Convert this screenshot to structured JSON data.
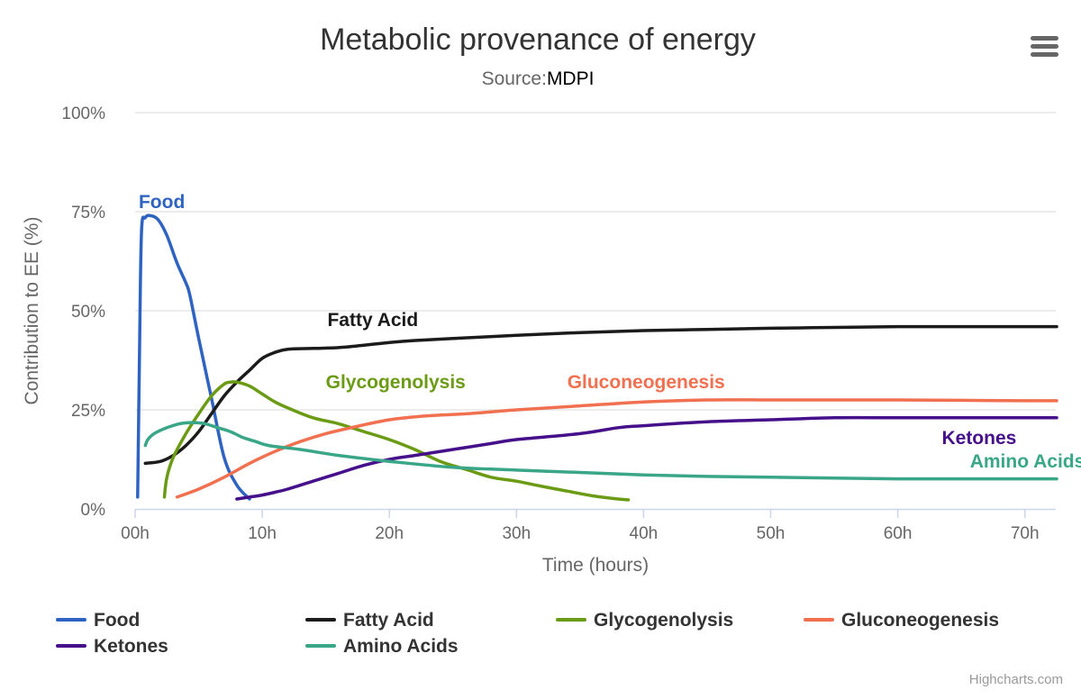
{
  "chart_data": {
    "type": "line",
    "title": "Metabolic provenance of energy",
    "subtitle_prefix": "Source:",
    "subtitle_source": "MDPI",
    "xlabel": "Time (hours)",
    "ylabel": "Contribution to EE (%)",
    "xlim": [
      0,
      72.5
    ],
    "ylim": [
      0,
      100
    ],
    "x_ticks": [
      {
        "value": 0,
        "label": "00h"
      },
      {
        "value": 10,
        "label": "10h"
      },
      {
        "value": 20,
        "label": "20h"
      },
      {
        "value": 30,
        "label": "30h"
      },
      {
        "value": 40,
        "label": "40h"
      },
      {
        "value": 50,
        "label": "50h"
      },
      {
        "value": 60,
        "label": "60h"
      },
      {
        "value": 70,
        "label": "70h"
      }
    ],
    "y_ticks": [
      {
        "value": 0,
        "label": "0%"
      },
      {
        "value": 25,
        "label": "25%"
      },
      {
        "value": 50,
        "label": "50%"
      },
      {
        "value": 75,
        "label": "75%"
      },
      {
        "value": 100,
        "label": "100%"
      }
    ],
    "grid": true,
    "legend_placement": "bottom",
    "series": [
      {
        "name": "Food",
        "color": "#2f63c2",
        "points": [
          [
            0.2,
            3
          ],
          [
            0.35,
            40
          ],
          [
            0.5,
            70
          ],
          [
            0.8,
            73.5
          ],
          [
            1.2,
            74
          ],
          [
            1.8,
            73
          ],
          [
            2.5,
            69
          ],
          [
            3.3,
            62
          ],
          [
            4,
            57
          ],
          [
            4.3,
            54
          ],
          [
            5,
            43
          ],
          [
            6,
            28
          ],
          [
            7,
            13
          ],
          [
            8,
            6
          ],
          [
            9,
            2.5
          ]
        ],
        "label": {
          "text": "Food",
          "x": 2.1,
          "y": 77.5
        }
      },
      {
        "name": "Fatty Acid",
        "color": "#1b1b1b",
        "points": [
          [
            0.8,
            11.5
          ],
          [
            2,
            12
          ],
          [
            3,
            13.5
          ],
          [
            4,
            16
          ],
          [
            5,
            19.5
          ],
          [
            6,
            24
          ],
          [
            7,
            28.5
          ],
          [
            8,
            32
          ],
          [
            9,
            35
          ],
          [
            10,
            38
          ],
          [
            11,
            39.5
          ],
          [
            12,
            40.3
          ],
          [
            14,
            40.5
          ],
          [
            16,
            40.7
          ],
          [
            18,
            41.3
          ],
          [
            20,
            42
          ],
          [
            22,
            42.5
          ],
          [
            25,
            43
          ],
          [
            30,
            43.8
          ],
          [
            35,
            44.5
          ],
          [
            40,
            45
          ],
          [
            45,
            45.3
          ],
          [
            50,
            45.6
          ],
          [
            55,
            45.8
          ],
          [
            60,
            46
          ],
          [
            65,
            46
          ],
          [
            70,
            46
          ],
          [
            72.5,
            46
          ]
        ],
        "label": {
          "text": "Fatty Acid",
          "x": 18.7,
          "y": 47.7
        }
      },
      {
        "name": "Glycogenolysis",
        "color": "#6b9b14",
        "points": [
          [
            2.3,
            3
          ],
          [
            2.5,
            8
          ],
          [
            3,
            13
          ],
          [
            4,
            19
          ],
          [
            5,
            24
          ],
          [
            6,
            28.5
          ],
          [
            7,
            31.5
          ],
          [
            7.5,
            32
          ],
          [
            8,
            32
          ],
          [
            9,
            31
          ],
          [
            10,
            29
          ],
          [
            11,
            27
          ],
          [
            12,
            25.5
          ],
          [
            14,
            23
          ],
          [
            16,
            21.5
          ],
          [
            18,
            19.5
          ],
          [
            20,
            17.5
          ],
          [
            22,
            15
          ],
          [
            24,
            12
          ],
          [
            26,
            10
          ],
          [
            28,
            8
          ],
          [
            30,
            7
          ],
          [
            32,
            5.7
          ],
          [
            34,
            4.5
          ],
          [
            36,
            3.3
          ],
          [
            38,
            2.5
          ],
          [
            38.8,
            2.3
          ]
        ],
        "label": {
          "text": "Glycogenolysis",
          "x": 20.5,
          "y": 32
        }
      },
      {
        "name": "Gluconeogenesis",
        "color": "#f07050",
        "points": [
          [
            3.3,
            3
          ],
          [
            5,
            5
          ],
          [
            7,
            8
          ],
          [
            9,
            11.5
          ],
          [
            11,
            14.5
          ],
          [
            13,
            17
          ],
          [
            15,
            19
          ],
          [
            17,
            20.5
          ],
          [
            20,
            22.5
          ],
          [
            23,
            23.5
          ],
          [
            26,
            24
          ],
          [
            30,
            25
          ],
          [
            35,
            26
          ],
          [
            40,
            27
          ],
          [
            45,
            27.5
          ],
          [
            50,
            27.5
          ],
          [
            55,
            27.5
          ],
          [
            60,
            27.5
          ],
          [
            65,
            27.4
          ],
          [
            70,
            27.3
          ],
          [
            72.5,
            27.3
          ]
        ],
        "label": {
          "text": "Gluconeogenesis",
          "x": 40.2,
          "y": 32
        }
      },
      {
        "name": "Ketones",
        "color": "#45108a",
        "points": [
          [
            8,
            2.5
          ],
          [
            9,
            3
          ],
          [
            10,
            3.5
          ],
          [
            11,
            4.2
          ],
          [
            12,
            5
          ],
          [
            14,
            7
          ],
          [
            16,
            9
          ],
          [
            18,
            11
          ],
          [
            20,
            12.5
          ],
          [
            22,
            13.5
          ],
          [
            25,
            15
          ],
          [
            28,
            16.5
          ],
          [
            30,
            17.5
          ],
          [
            35,
            19
          ],
          [
            38,
            20.5
          ],
          [
            40,
            21
          ],
          [
            45,
            22
          ],
          [
            50,
            22.5
          ],
          [
            55,
            23
          ],
          [
            60,
            23
          ],
          [
            65,
            23
          ],
          [
            70,
            23
          ],
          [
            72.5,
            23
          ]
        ],
        "label": {
          "text": "Ketones",
          "x": 66.4,
          "y": 18
        }
      },
      {
        "name": "Amino Acids",
        "color": "#3aa688",
        "points": [
          [
            0.8,
            16
          ],
          [
            1,
            17.5
          ],
          [
            1.5,
            19
          ],
          [
            2.5,
            20.5
          ],
          [
            3.5,
            21.5
          ],
          [
            4.5,
            21.8
          ],
          [
            5.5,
            21.5
          ],
          [
            6.5,
            20.5
          ],
          [
            7.5,
            19.5
          ],
          [
            8.5,
            18
          ],
          [
            9.5,
            17
          ],
          [
            10.5,
            16
          ],
          [
            13,
            15
          ],
          [
            16,
            13.5
          ],
          [
            20,
            12
          ],
          [
            25,
            10.5
          ],
          [
            30,
            9.8
          ],
          [
            35,
            9.2
          ],
          [
            40,
            8.6
          ],
          [
            45,
            8.2
          ],
          [
            50,
            8
          ],
          [
            55,
            7.8
          ],
          [
            60,
            7.6
          ],
          [
            65,
            7.6
          ],
          [
            70,
            7.6
          ],
          [
            72.5,
            7.6
          ]
        ],
        "label": {
          "text": "Amino Acids",
          "x": 70.2,
          "y": 12
        }
      }
    ]
  },
  "credits": "Highcharts.com",
  "menu_icon": "hamburger-menu-icon"
}
